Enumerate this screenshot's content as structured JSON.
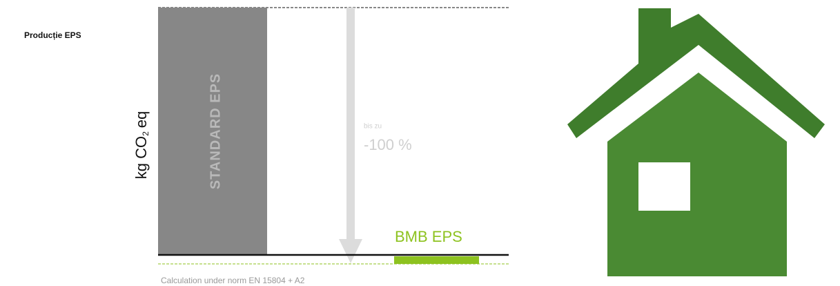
{
  "header": {
    "title": "Producție EPS"
  },
  "axis": {
    "label": "kg CO",
    "subscript": "2",
    "unit": "eq"
  },
  "bars": [
    {
      "label": "STANDARD EPS"
    },
    {
      "label": "BMB EPS"
    }
  ],
  "reduction": {
    "prefix": "bis zu",
    "value": "-100 %"
  },
  "footer": {
    "note": "Calculation under norm EN 15804 + A2"
  }
}
